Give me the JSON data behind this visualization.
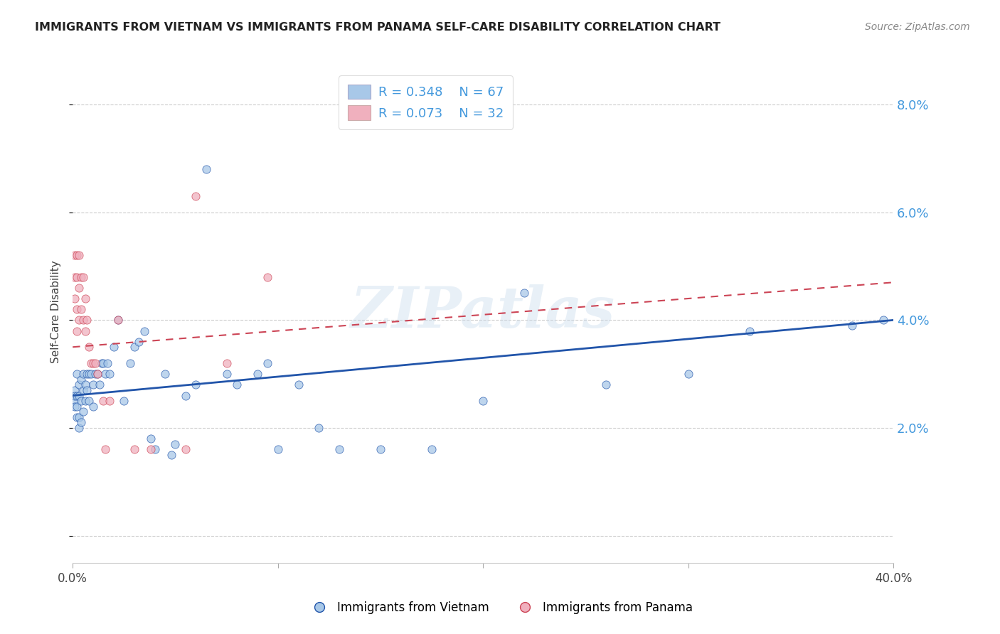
{
  "title": "IMMIGRANTS FROM VIETNAM VS IMMIGRANTS FROM PANAMA SELF-CARE DISABILITY CORRELATION CHART",
  "source": "Source: ZipAtlas.com",
  "ylabel": "Self-Care Disability",
  "xlim": [
    0.0,
    0.4
  ],
  "ylim": [
    -0.005,
    0.088
  ],
  "watermark": "ZIPatlas",
  "legend_R_vietnam": "R = 0.348",
  "legend_N_vietnam": "67",
  "legend_R_panama": "R = 0.073",
  "legend_N_panama": "32",
  "color_vietnam": "#a8c8e8",
  "color_panama": "#f0b0be",
  "color_vietnam_line": "#2255aa",
  "color_panama_line": "#cc4455",
  "color_right_axis": "#4499dd",
  "background_color": "#ffffff",
  "grid_color": "#cccccc",
  "vietnam_x": [
    0.001,
    0.001,
    0.001,
    0.001,
    0.002,
    0.002,
    0.002,
    0.002,
    0.003,
    0.003,
    0.003,
    0.003,
    0.004,
    0.004,
    0.004,
    0.005,
    0.005,
    0.005,
    0.006,
    0.006,
    0.007,
    0.007,
    0.008,
    0.008,
    0.009,
    0.01,
    0.01,
    0.011,
    0.012,
    0.013,
    0.014,
    0.015,
    0.016,
    0.017,
    0.018,
    0.02,
    0.022,
    0.025,
    0.028,
    0.03,
    0.032,
    0.035,
    0.038,
    0.04,
    0.045,
    0.048,
    0.05,
    0.055,
    0.06,
    0.065,
    0.075,
    0.08,
    0.09,
    0.095,
    0.1,
    0.11,
    0.12,
    0.13,
    0.15,
    0.175,
    0.2,
    0.22,
    0.26,
    0.3,
    0.33,
    0.38,
    0.395
  ],
  "vietnam_y": [
    0.027,
    0.025,
    0.026,
    0.024,
    0.03,
    0.026,
    0.024,
    0.022,
    0.028,
    0.026,
    0.022,
    0.02,
    0.029,
    0.025,
    0.021,
    0.03,
    0.027,
    0.023,
    0.028,
    0.025,
    0.03,
    0.027,
    0.03,
    0.025,
    0.03,
    0.028,
    0.024,
    0.03,
    0.03,
    0.028,
    0.032,
    0.032,
    0.03,
    0.032,
    0.03,
    0.035,
    0.04,
    0.025,
    0.032,
    0.035,
    0.036,
    0.038,
    0.018,
    0.016,
    0.03,
    0.015,
    0.017,
    0.026,
    0.028,
    0.068,
    0.03,
    0.028,
    0.03,
    0.032,
    0.016,
    0.028,
    0.02,
    0.016,
    0.016,
    0.016,
    0.025,
    0.045,
    0.028,
    0.03,
    0.038,
    0.039,
    0.04
  ],
  "panama_x": [
    0.001,
    0.001,
    0.001,
    0.002,
    0.002,
    0.002,
    0.002,
    0.003,
    0.003,
    0.003,
    0.004,
    0.004,
    0.005,
    0.005,
    0.006,
    0.006,
    0.007,
    0.008,
    0.009,
    0.01,
    0.011,
    0.012,
    0.015,
    0.016,
    0.018,
    0.022,
    0.03,
    0.038,
    0.055,
    0.06,
    0.075,
    0.095
  ],
  "panama_y": [
    0.052,
    0.048,
    0.044,
    0.052,
    0.048,
    0.042,
    0.038,
    0.052,
    0.046,
    0.04,
    0.048,
    0.042,
    0.048,
    0.04,
    0.044,
    0.038,
    0.04,
    0.035,
    0.032,
    0.032,
    0.032,
    0.03,
    0.025,
    0.016,
    0.025,
    0.04,
    0.016,
    0.016,
    0.016,
    0.063,
    0.032,
    0.048
  ],
  "viet_line_x0": 0.0,
  "viet_line_y0": 0.026,
  "viet_line_x1": 0.4,
  "viet_line_y1": 0.04,
  "pan_line_x0": 0.0,
  "pan_line_y0": 0.035,
  "pan_line_x1": 0.4,
  "pan_line_y1": 0.047
}
